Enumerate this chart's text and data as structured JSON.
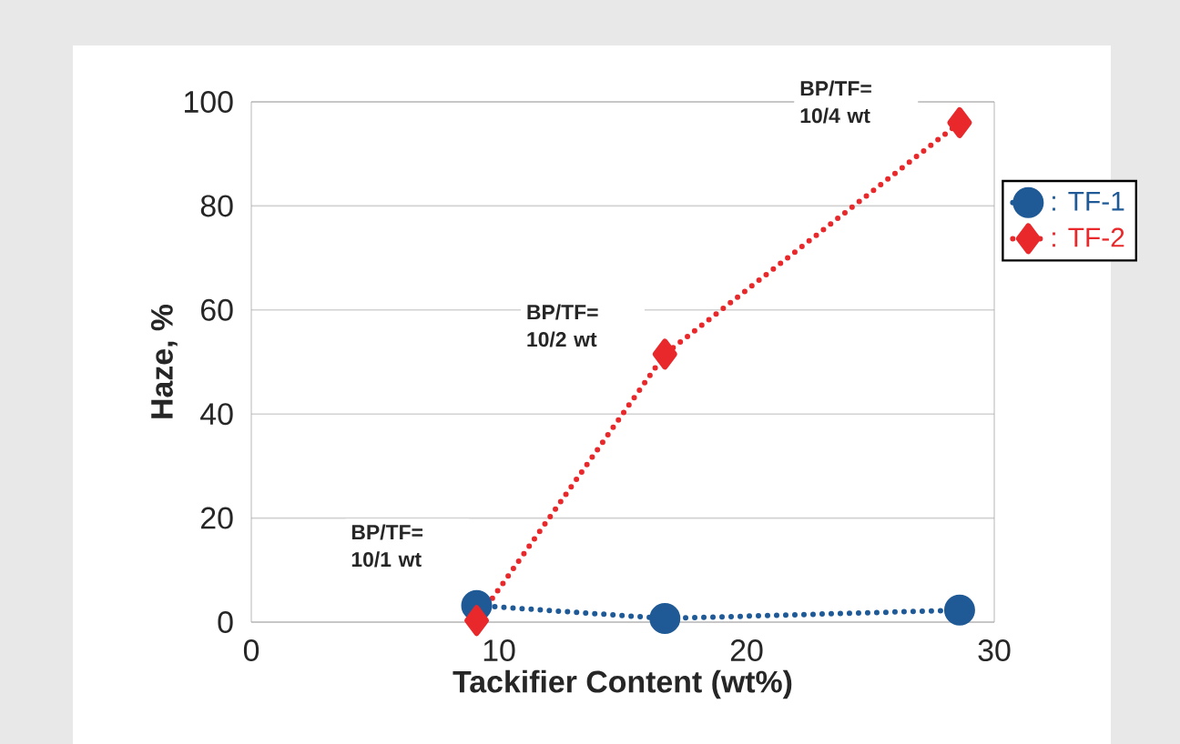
{
  "chart_data": {
    "type": "line",
    "xlabel": "Tackifier Content (wt%)",
    "ylabel": "Haze, %",
    "xlim": [
      0,
      30
    ],
    "xticks": [
      0,
      10,
      20,
      30
    ],
    "ylim": [
      0,
      100
    ],
    "yticks": [
      0,
      20,
      40,
      60,
      80,
      100
    ],
    "grid": "y",
    "legend": "right",
    "line_style": "dotted",
    "series": [
      {
        "name": ": TF-1",
        "color": "#1f5a96",
        "marker": "circle",
        "x": [
          9.1,
          16.7,
          28.6
        ],
        "values": [
          3.2,
          0.7,
          2.3
        ]
      },
      {
        "name": ": TF-2",
        "color": "#e8282a",
        "marker": "diamond",
        "x": [
          9.1,
          16.7,
          28.6
        ],
        "values": [
          0.3,
          51.5,
          96
        ]
      }
    ],
    "annotations": [
      "BP/TF= 10/1 wt",
      "BP/TF= 10/2 wt",
      "BP/TF= 10/4 wt"
    ]
  }
}
